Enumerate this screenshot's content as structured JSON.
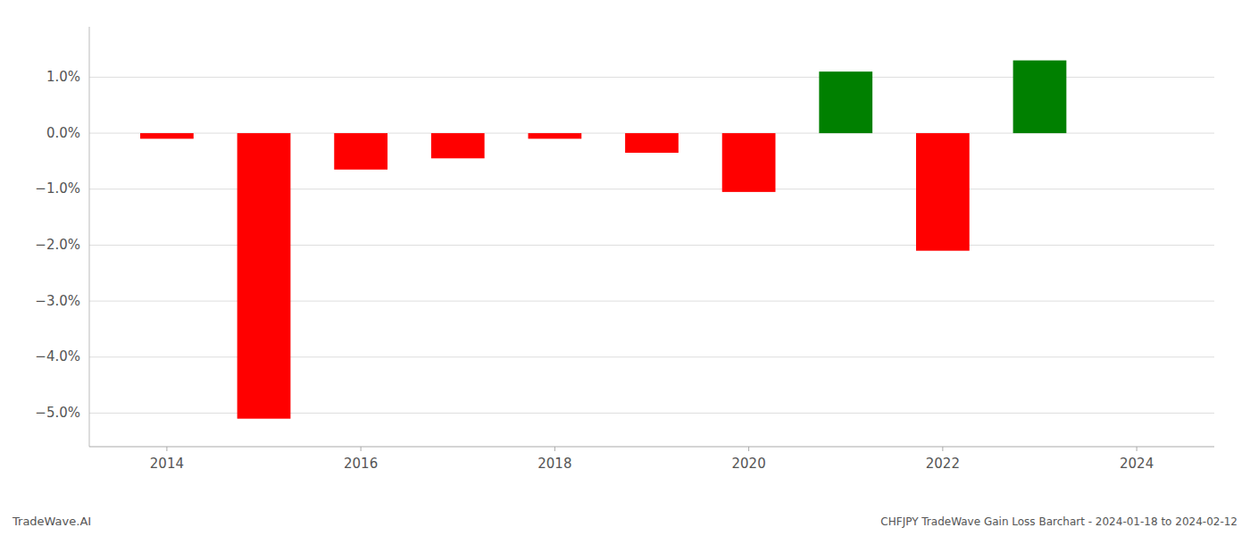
{
  "chart_data": {
    "type": "bar",
    "title": "CHFJPY TradeWave Gain Loss Barchart - 2024-01-18 to 2024-02-12",
    "annotations": [
      "TradeWave.AI"
    ],
    "x": [
      2014,
      2015,
      2016,
      2017,
      2018,
      2019,
      2020,
      2021,
      2022,
      2023
    ],
    "values": [
      -0.1,
      -5.1,
      -0.65,
      -0.45,
      -0.1,
      -0.35,
      -1.05,
      1.1,
      -2.1,
      1.3
    ],
    "colors": [
      "#ff0000",
      "#ff0000",
      "#ff0000",
      "#ff0000",
      "#ff0000",
      "#ff0000",
      "#ff0000",
      "#008000",
      "#ff0000",
      "#008000"
    ],
    "xlim": [
      2013.2,
      2024.8
    ],
    "xticks": [
      2014,
      2016,
      2018,
      2020,
      2022,
      2024
    ],
    "ylim": [
      -5.6,
      1.9
    ],
    "yticks": [
      {
        "value": -5.0,
        "label": "−5.0%"
      },
      {
        "value": -4.0,
        "label": "−4.0%"
      },
      {
        "value": -3.0,
        "label": "−3.0%"
      },
      {
        "value": -2.0,
        "label": "−2.0%"
      },
      {
        "value": -1.0,
        "label": "−1.0%"
      },
      {
        "value": 0.0,
        "label": "0.0%"
      },
      {
        "value": 1.0,
        "label": "1.0%"
      }
    ],
    "grid": true
  }
}
